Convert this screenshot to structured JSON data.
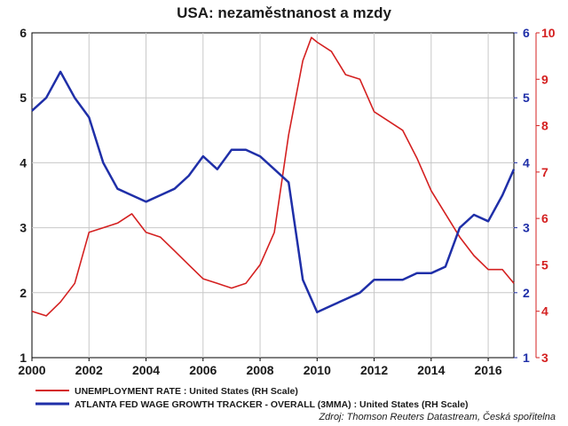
{
  "chart_data": {
    "type": "line",
    "title": "USA: nezaměstnanost a mzdy",
    "source": "Zdroj: Thomson Reuters Datastream, Česká spořitelna",
    "x_ticks": [
      "2000",
      "2002",
      "2004",
      "2006",
      "2008",
      "2010",
      "2012",
      "2014",
      "2016"
    ],
    "xlim": [
      2000,
      2016.9
    ],
    "axes": {
      "left": {
        "ylim": [
          1,
          6
        ],
        "ticks": [
          "1",
          "2",
          "3",
          "4",
          "5",
          "6"
        ],
        "color": "#1a1a1a"
      },
      "blue": {
        "ylim": [
          1,
          6
        ],
        "ticks": [
          "1",
          "2",
          "3",
          "4",
          "5",
          "6"
        ],
        "color": "#1f2fa8"
      },
      "red": {
        "ylim": [
          3,
          10
        ],
        "ticks": [
          "3",
          "4",
          "5",
          "6",
          "7",
          "8",
          "9",
          "10"
        ],
        "color": "#d42020"
      }
    },
    "grid": true,
    "legend_position": "bottom-left",
    "series": [
      {
        "name": "UNEMPLOYMENT RATE : United States (RH Scale)",
        "axis": "red",
        "color": "#d42020",
        "x": [
          2000.0,
          2000.5,
          2001.0,
          2001.5,
          2002.0,
          2002.5,
          2003.0,
          2003.5,
          2004.0,
          2004.5,
          2005.0,
          2005.5,
          2006.0,
          2006.5,
          2007.0,
          2007.5,
          2008.0,
          2008.5,
          2009.0,
          2009.5,
          2009.8,
          2010.0,
          2010.5,
          2011.0,
          2011.5,
          2012.0,
          2012.5,
          2013.0,
          2013.5,
          2014.0,
          2014.5,
          2015.0,
          2015.5,
          2016.0,
          2016.5,
          2016.9
        ],
        "values": [
          4.0,
          3.9,
          4.2,
          4.6,
          5.7,
          5.8,
          5.9,
          6.1,
          5.7,
          5.6,
          5.3,
          5.0,
          4.7,
          4.6,
          4.5,
          4.6,
          5.0,
          5.7,
          7.8,
          9.4,
          9.9,
          9.8,
          9.6,
          9.1,
          9.0,
          8.3,
          8.1,
          7.9,
          7.3,
          6.6,
          6.1,
          5.6,
          5.2,
          4.9,
          4.9,
          4.6
        ]
      },
      {
        "name": "ATLANTA FED WAGE GROWTH TRACKER - OVERALL (3MMA) : United States (RH Scale)",
        "axis": "blue",
        "color": "#1f2fa8",
        "x": [
          2000.0,
          2000.5,
          2001.0,
          2001.5,
          2002.0,
          2002.5,
          2003.0,
          2003.5,
          2004.0,
          2004.5,
          2005.0,
          2005.5,
          2006.0,
          2006.5,
          2007.0,
          2007.5,
          2008.0,
          2008.5,
          2009.0,
          2009.5,
          2010.0,
          2010.5,
          2011.0,
          2011.5,
          2012.0,
          2012.5,
          2013.0,
          2013.5,
          2014.0,
          2014.5,
          2015.0,
          2015.5,
          2016.0,
          2016.5,
          2016.9
        ],
        "values": [
          4.8,
          5.0,
          5.4,
          5.0,
          4.7,
          4.0,
          3.6,
          3.5,
          3.4,
          3.5,
          3.6,
          3.8,
          4.1,
          3.9,
          4.2,
          4.2,
          4.1,
          3.9,
          3.7,
          2.2,
          1.7,
          1.8,
          1.9,
          2.0,
          2.2,
          2.2,
          2.2,
          2.3,
          2.3,
          2.4,
          3.0,
          3.2,
          3.1,
          3.5,
          3.9
        ]
      }
    ]
  }
}
